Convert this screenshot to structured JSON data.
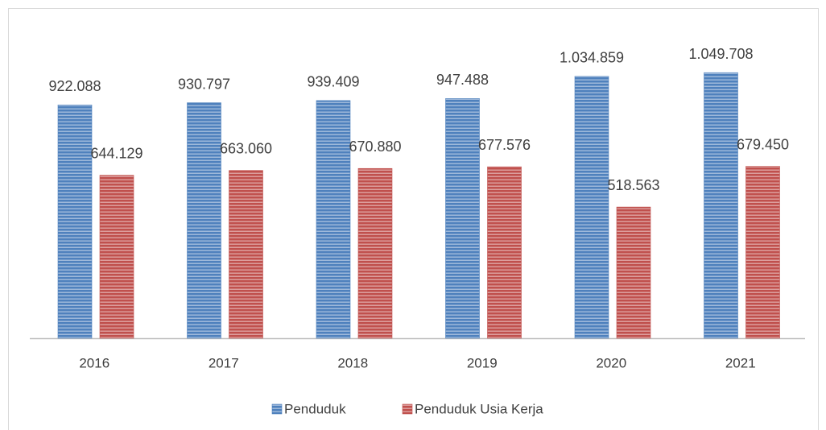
{
  "chart_data": {
    "type": "bar",
    "categories": [
      "2016",
      "2017",
      "2018",
      "2019",
      "2020",
      "2021"
    ],
    "series": [
      {
        "name": "Penduduk",
        "color": "#4f81bd",
        "values": [
          922088,
          930797,
          939409,
          947488,
          1034859,
          1049708
        ],
        "value_labels": [
          "922.088",
          "930.797",
          "939.409",
          "947.488",
          "1.034.859",
          "1.049.708"
        ]
      },
      {
        "name": "Penduduk Usia Kerja",
        "color": "#c0504d",
        "values": [
          644129,
          663060,
          670880,
          677576,
          518563,
          679450
        ],
        "value_labels": [
          "644.129",
          "663.060",
          "670.880",
          "677.576",
          "518.563",
          "679.450"
        ]
      }
    ],
    "ylim": [
      0,
      1200000
    ],
    "grid": false,
    "legend": "bottom"
  }
}
